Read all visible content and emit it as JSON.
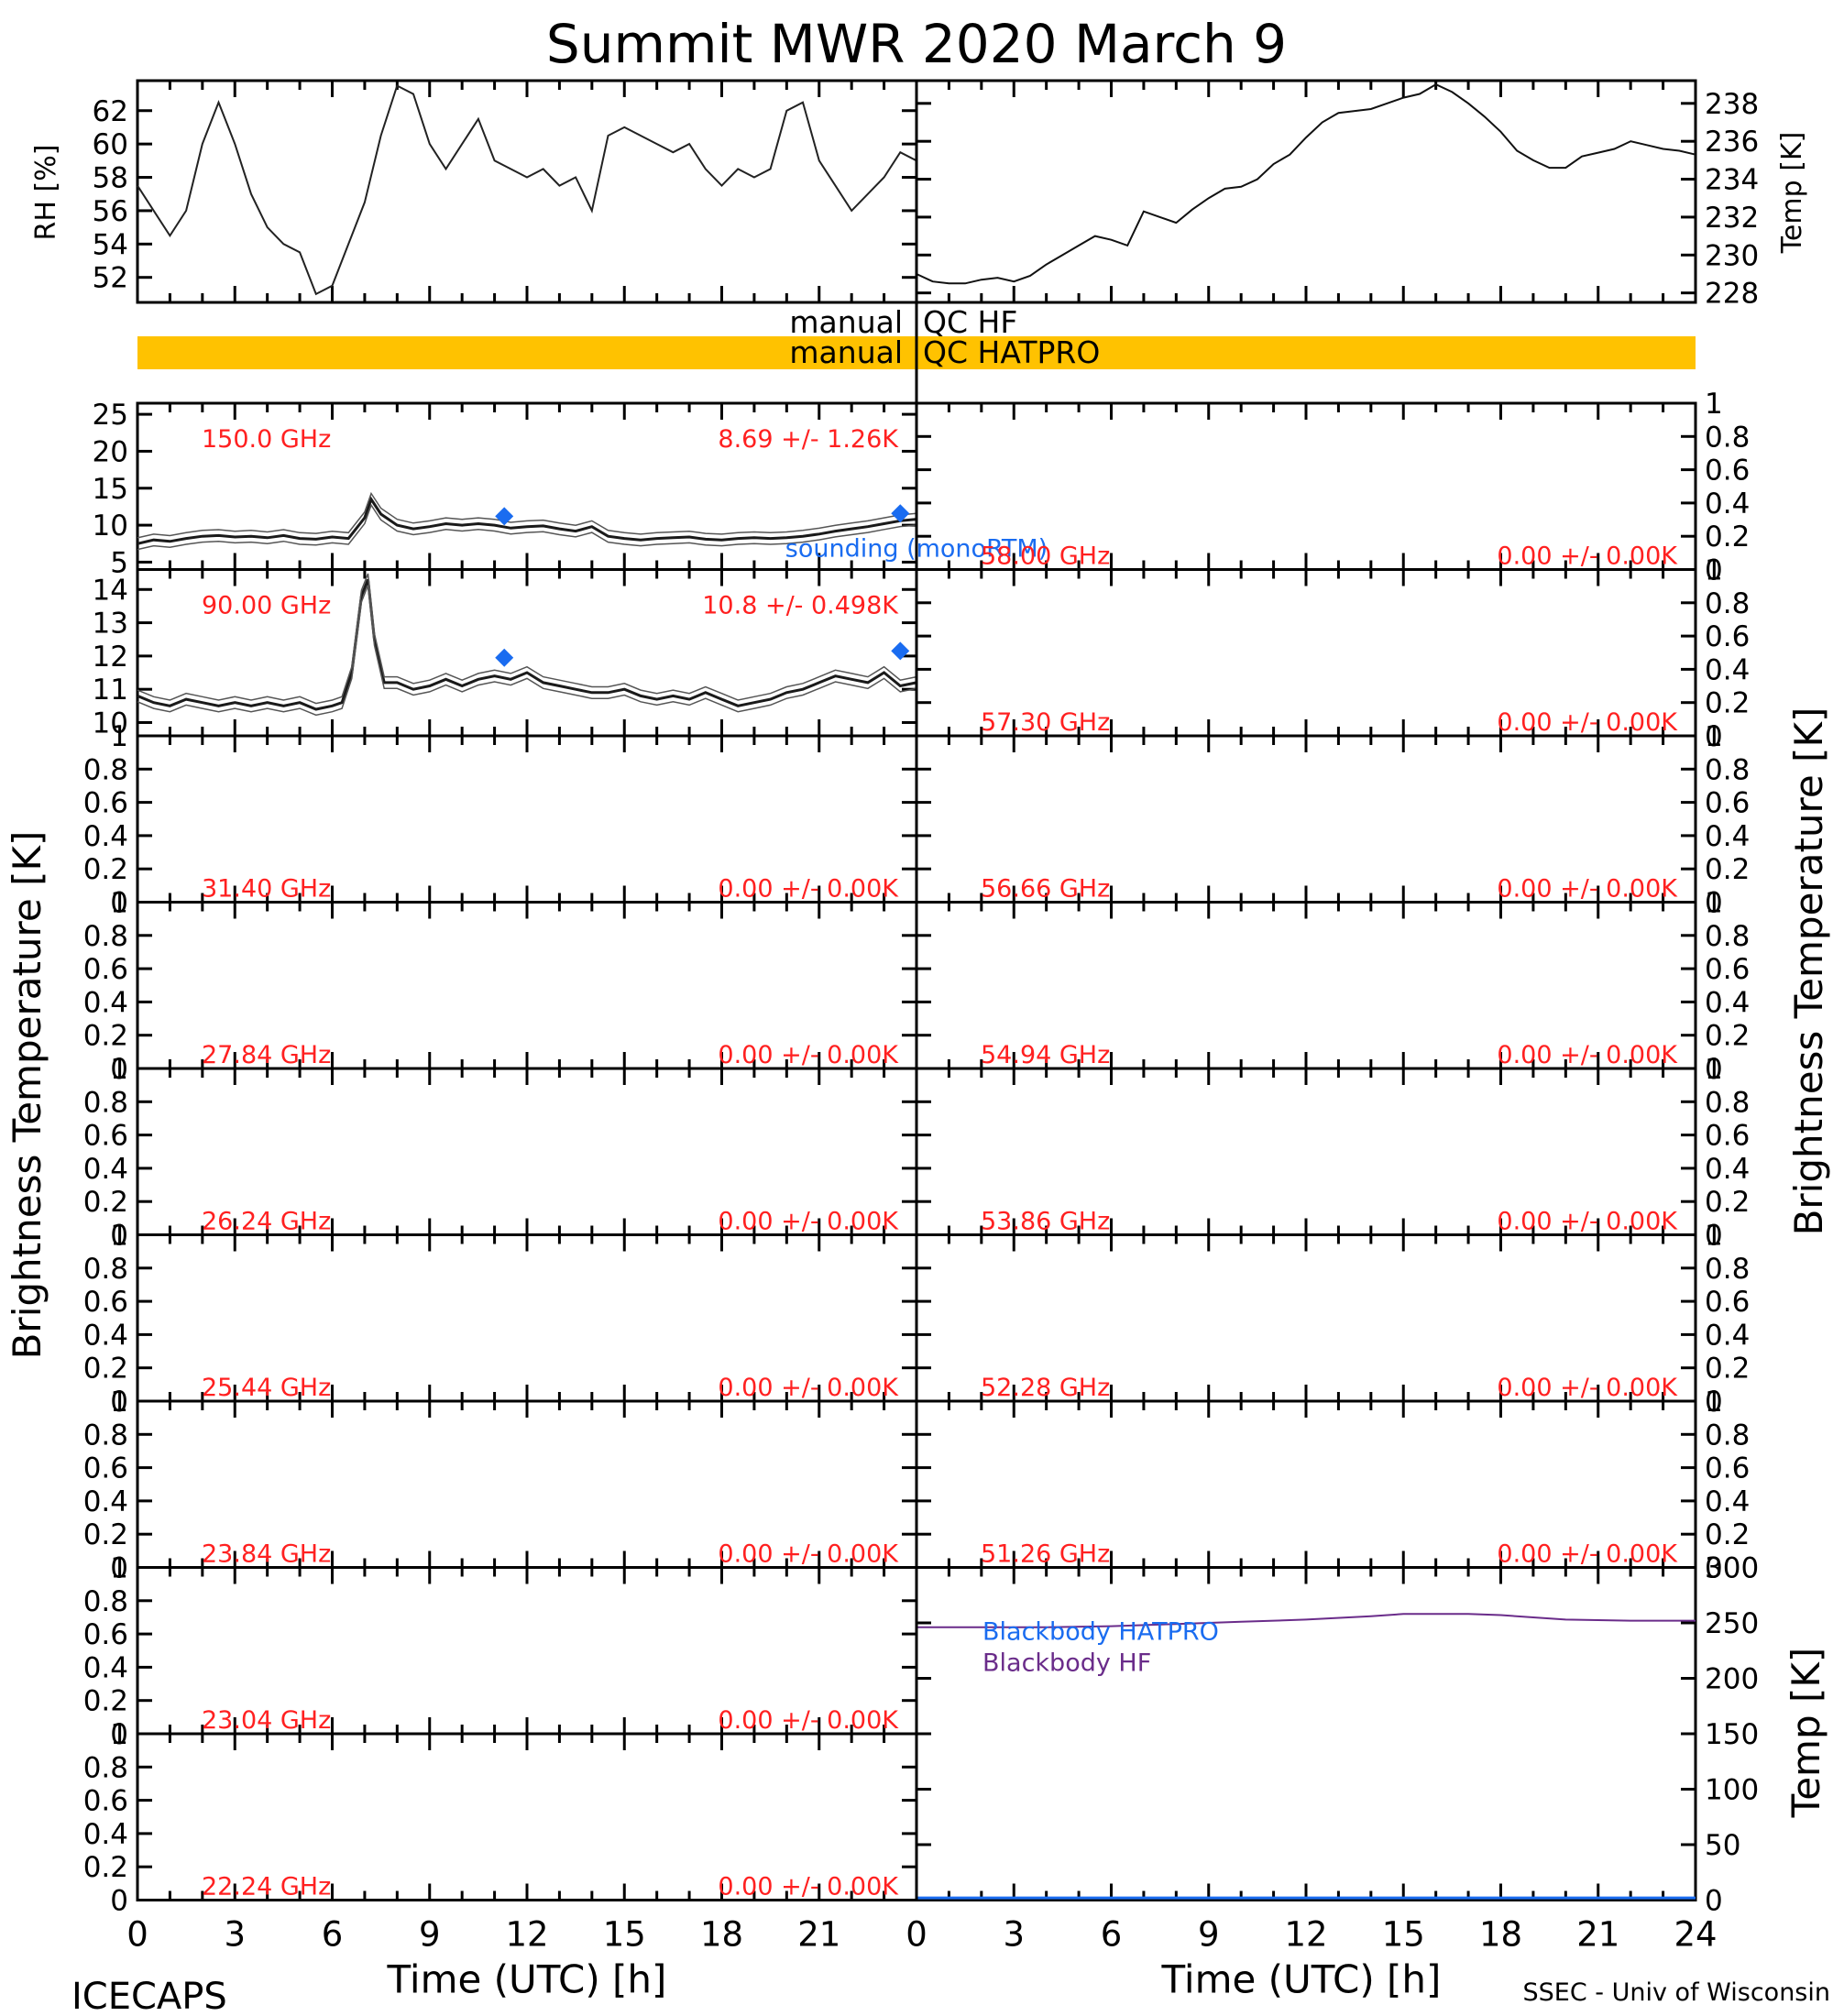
{
  "title": "Summit MWR 2020 March  9",
  "footer": {
    "left": "ICECAPS",
    "right": "SSEC - Univ of Wisconsin"
  },
  "colors": {
    "accent_red": "#ff2020",
    "sounding_blue": "#1a6cf0",
    "qc_bar": "#ffc200",
    "purple": "#6a2c8a",
    "axis": "#000000"
  },
  "chart_data": [
    {
      "id": "rh",
      "type": "line",
      "ylabel": "RH [%]",
      "ylim": [
        50.5,
        63.8
      ],
      "yticks": [
        52,
        54,
        56,
        58,
        60,
        62
      ],
      "xlim": [
        0,
        24
      ],
      "x": [
        0,
        0.5,
        1,
        1.5,
        2,
        2.5,
        3,
        3.5,
        4,
        4.5,
        5,
        5.5,
        6,
        6.5,
        7,
        7.5,
        8,
        8.5,
        9,
        9.5,
        10,
        10.5,
        11,
        11.5,
        12,
        12.5,
        13,
        13.5,
        14,
        14.5,
        15,
        15.5,
        16,
        16.5,
        17,
        17.5,
        18,
        18.5,
        19,
        19.5,
        20,
        20.5,
        21,
        21.5,
        22,
        22.5,
        23,
        23.5,
        24
      ],
      "y": [
        57.5,
        56,
        54.5,
        56,
        60,
        62.5,
        60,
        57,
        55,
        54,
        53.5,
        51,
        51.5,
        54,
        56.5,
        60.5,
        63.5,
        63,
        60,
        58.5,
        60,
        61.5,
        59,
        58.5,
        58,
        58.5,
        57.5,
        58,
        56,
        60.5,
        61,
        60.5,
        60,
        59.5,
        60,
        58.5,
        57.5,
        58.5,
        58,
        58.5,
        62,
        62.5,
        59,
        57.5,
        56,
        57,
        58,
        59.5,
        59
      ]
    },
    {
      "id": "temp",
      "type": "line",
      "ylabel": "Temp [K]",
      "ylim": [
        227.5,
        239.2
      ],
      "yticks": [
        228,
        230,
        232,
        234,
        236,
        238
      ],
      "xlim": [
        0,
        24
      ],
      "x": [
        0,
        0.5,
        1,
        1.5,
        2,
        2.5,
        3,
        3.5,
        4,
        4.5,
        5,
        5.5,
        6,
        6.5,
        7,
        7.5,
        8,
        8.5,
        9,
        9.5,
        10,
        10.5,
        11,
        11.5,
        12,
        12.5,
        13,
        13.5,
        14,
        14.5,
        15,
        15.5,
        16,
        16.5,
        17,
        17.5,
        18,
        18.5,
        19,
        19.5,
        20,
        20.5,
        21,
        21.5,
        22,
        22.5,
        23,
        23.5,
        24
      ],
      "y": [
        229,
        228.6,
        228.5,
        228.5,
        228.7,
        228.8,
        228.6,
        228.9,
        229.5,
        230,
        230.5,
        231,
        230.8,
        230.5,
        232.3,
        232,
        231.7,
        232.4,
        233,
        233.5,
        233.6,
        234,
        234.8,
        235.3,
        236.2,
        237,
        237.5,
        237.6,
        237.7,
        238,
        238.3,
        238.5,
        239,
        238.6,
        238,
        237.3,
        236.5,
        235.5,
        235,
        234.6,
        234.6,
        235.2,
        235.4,
        235.6,
        236,
        235.8,
        235.6,
        235.5,
        235.3
      ]
    },
    {
      "id": "qc",
      "type": "table",
      "rows": [
        {
          "label_left": "manual",
          "label_right": "QC HF",
          "color": "none"
        },
        {
          "label_left": "manual",
          "label_right": "QC HATPRO",
          "color": "#ffc200"
        }
      ]
    },
    {
      "id": "tb",
      "type": "line",
      "ylabel": "Brightness Temperature [K]",
      "xlabel": "Time (UTC) [h]",
      "xlim": [
        0,
        24
      ],
      "xticks": [
        0,
        3,
        6,
        9,
        12,
        15,
        18,
        21
      ],
      "xticks_right": [
        0,
        3,
        6,
        9,
        12,
        15,
        18,
        21,
        24
      ],
      "panels_left": [
        {
          "freq": "150.0 GHz",
          "stat": "8.69 +/-  1.26K",
          "ylim": [
            4,
            26.5
          ],
          "yticks": [
            5,
            10,
            15,
            20,
            25
          ],
          "series": "tb150",
          "sounding": [
            {
              "x": 11.3,
              "y": 11.2
            },
            {
              "x": 23.5,
              "y": 11.6
            }
          ],
          "sounding_label": "sounding (monoRTM)"
        },
        {
          "freq": "90.00 GHz",
          "stat": "10.8 +/- 0.498K",
          "ylim": [
            9.6,
            14.6
          ],
          "yticks": [
            10,
            11,
            12,
            13,
            14
          ],
          "series": "tb90",
          "sounding": [
            {
              "x": 11.3,
              "y": 11.95
            },
            {
              "x": 23.5,
              "y": 12.15
            }
          ]
        },
        {
          "freq": "31.40 GHz",
          "stat": "0.00 +/-  0.00K",
          "ylim": [
            0,
            1
          ],
          "yticks": [
            0.0,
            0.2,
            0.4,
            0.6,
            0.8,
            1.0
          ]
        },
        {
          "freq": "27.84 GHz",
          "stat": "0.00 +/-  0.00K",
          "ylim": [
            0,
            1
          ],
          "yticks": [
            0.0,
            0.2,
            0.4,
            0.6,
            0.8,
            1.0
          ]
        },
        {
          "freq": "26.24 GHz",
          "stat": "0.00 +/-  0.00K",
          "ylim": [
            0,
            1
          ],
          "yticks": [
            0.0,
            0.2,
            0.4,
            0.6,
            0.8,
            1.0
          ]
        },
        {
          "freq": "25.44 GHz",
          "stat": "0.00 +/-  0.00K",
          "ylim": [
            0,
            1
          ],
          "yticks": [
            0.0,
            0.2,
            0.4,
            0.6,
            0.8,
            1.0
          ]
        },
        {
          "freq": "23.84 GHz",
          "stat": "0.00 +/-  0.00K",
          "ylim": [
            0,
            1
          ],
          "yticks": [
            0.0,
            0.2,
            0.4,
            0.6,
            0.8,
            1.0
          ]
        },
        {
          "freq": "23.04 GHz",
          "stat": "0.00 +/-  0.00K",
          "ylim": [
            0,
            1
          ],
          "yticks": [
            0.0,
            0.2,
            0.4,
            0.6,
            0.8,
            1.0
          ]
        },
        {
          "freq": "22.24 GHz",
          "stat": "0.00 +/-  0.00K",
          "ylim": [
            0,
            1
          ],
          "yticks": [
            0.0,
            0.2,
            0.4,
            0.6,
            0.8,
            1.0
          ]
        }
      ],
      "panels_right": [
        {
          "freq": "58.00 GHz",
          "stat": "0.00 +/-  0.00K",
          "ylim": [
            0,
            1
          ],
          "yticks": [
            0.0,
            0.2,
            0.4,
            0.6,
            0.8,
            1.0
          ]
        },
        {
          "freq": "57.30 GHz",
          "stat": "0.00 +/-  0.00K",
          "ylim": [
            0,
            1
          ],
          "yticks": [
            0.0,
            0.2,
            0.4,
            0.6,
            0.8,
            1.0
          ]
        },
        {
          "freq": "56.66 GHz",
          "stat": "0.00 +/-  0.00K",
          "ylim": [
            0,
            1
          ],
          "yticks": [
            0.0,
            0.2,
            0.4,
            0.6,
            0.8,
            1.0
          ]
        },
        {
          "freq": "54.94 GHz",
          "stat": "0.00 +/-  0.00K",
          "ylim": [
            0,
            1
          ],
          "yticks": [
            0.0,
            0.2,
            0.4,
            0.6,
            0.8,
            1.0
          ]
        },
        {
          "freq": "53.86 GHz",
          "stat": "0.00 +/-  0.00K",
          "ylim": [
            0,
            1
          ],
          "yticks": [
            0.0,
            0.2,
            0.4,
            0.6,
            0.8,
            1.0
          ]
        },
        {
          "freq": "52.28 GHz",
          "stat": "0.00 +/-  0.00K",
          "ylim": [
            0,
            1
          ],
          "yticks": [
            0.0,
            0.2,
            0.4,
            0.6,
            0.8,
            1.0
          ]
        },
        {
          "freq": "51.26 GHz",
          "stat": "0.00 +/-  0.00K",
          "ylim": [
            0,
            1
          ],
          "yticks": [
            0.0,
            0.2,
            0.4,
            0.6,
            0.8,
            1.0
          ]
        }
      ],
      "tb150_x": [
        0,
        0.5,
        1,
        1.5,
        2,
        2.5,
        3,
        3.5,
        4,
        4.5,
        5,
        5.5,
        6,
        6.5,
        7,
        7.2,
        7.5,
        8,
        8.5,
        9,
        9.5,
        10,
        10.5,
        11,
        11.5,
        12,
        12.5,
        13,
        13.5,
        14,
        14.5,
        15,
        15.5,
        16,
        16.5,
        17,
        17.5,
        18,
        18.5,
        19,
        19.5,
        20,
        20.5,
        21,
        21.5,
        22,
        22.5,
        23,
        23.5,
        24
      ],
      "tb150_y": [
        7.5,
        8,
        7.8,
        8.2,
        8.5,
        8.6,
        8.4,
        8.5,
        8.3,
        8.6,
        8.2,
        8.1,
        8.4,
        8.2,
        11,
        13.5,
        11.5,
        10,
        9.5,
        9.8,
        10.2,
        10,
        10.2,
        10,
        9.6,
        9.8,
        9.9,
        9.5,
        9.2,
        9.8,
        8.5,
        8.2,
        8,
        8.2,
        8.3,
        8.4,
        8.1,
        8,
        8.2,
        8.3,
        8.2,
        8.3,
        8.5,
        8.8,
        9.2,
        9.5,
        9.8,
        10.2,
        10.6,
        10.8
      ],
      "tb90_x": [
        0,
        0.5,
        1,
        1.5,
        2,
        2.5,
        3,
        3.5,
        4,
        4.5,
        5,
        5.5,
        6,
        6.3,
        6.6,
        6.9,
        7.1,
        7.3,
        7.6,
        8,
        8.5,
        9,
        9.5,
        10,
        10.5,
        11,
        11.5,
        12,
        12.5,
        13,
        13.5,
        14,
        14.5,
        15,
        15.5,
        16,
        16.5,
        17,
        17.5,
        18,
        18.5,
        19,
        19.5,
        20,
        20.5,
        21,
        21.5,
        22,
        22.5,
        23,
        23.5,
        24
      ],
      "tb90_y": [
        10.8,
        10.6,
        10.5,
        10.7,
        10.6,
        10.5,
        10.6,
        10.5,
        10.6,
        10.5,
        10.6,
        10.4,
        10.5,
        10.6,
        11.5,
        13.8,
        14.3,
        12.5,
        11.2,
        11.2,
        11,
        11.1,
        11.3,
        11.1,
        11.3,
        11.4,
        11.3,
        11.5,
        11.2,
        11.1,
        11,
        10.9,
        10.9,
        11,
        10.8,
        10.7,
        10.8,
        10.7,
        10.9,
        10.7,
        10.5,
        10.6,
        10.7,
        10.9,
        11,
        11.2,
        11.4,
        11.3,
        11.2,
        11.5,
        11.1,
        11.2
      ],
      "blackbody": {
        "ylim": [
          0,
          300
        ],
        "yticks": [
          0,
          50,
          100,
          150,
          200,
          250,
          300
        ],
        "ylabel": "Temp [K]",
        "legend": [
          "Blackbody HATPRO",
          "Blackbody HF"
        ],
        "x": [
          0,
          2,
          4,
          6,
          8,
          10,
          12,
          14,
          15,
          16,
          17,
          18,
          19,
          20,
          22,
          24
        ],
        "hf": [
          246,
          246,
          246,
          247,
          249,
          251,
          253,
          256,
          258,
          258,
          258,
          257,
          255,
          253,
          252,
          252
        ],
        "hatpro": [
          2,
          2,
          2,
          2,
          2,
          2,
          2,
          2,
          2,
          2,
          2,
          2,
          2,
          2,
          2,
          2
        ]
      }
    }
  ]
}
